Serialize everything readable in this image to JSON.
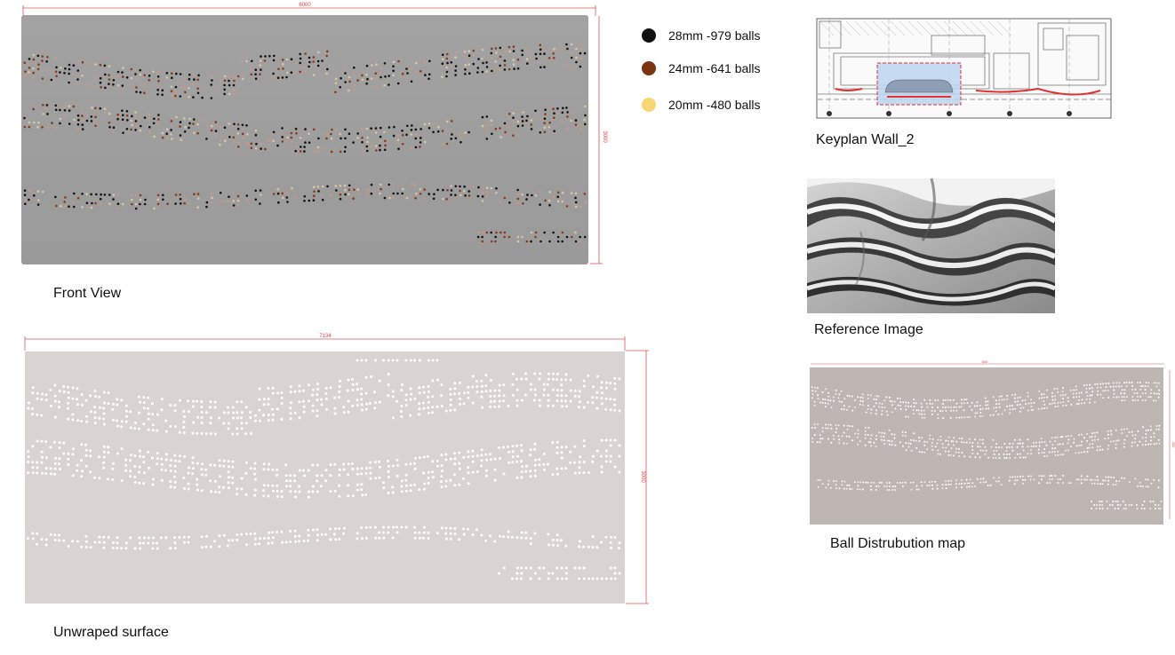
{
  "front_view": {
    "caption": "Front View",
    "width_dim": "6000",
    "height_dim": "3000"
  },
  "legend": [
    {
      "label": "28mm -979 balls",
      "color": "#111111"
    },
    {
      "label": "24mm -641 balls",
      "color": "#7a3410"
    },
    {
      "label": "20mm -480 balls",
      "color": "#f7d774"
    }
  ],
  "keyplan": {
    "caption": "Keyplan Wall_2"
  },
  "reference": {
    "caption": "Reference Image"
  },
  "unwrapped": {
    "caption": "Unwraped surface",
    "width_dim": "7134",
    "height_dim": "3000"
  },
  "distribution": {
    "caption": "Ball Distrubution map",
    "width_dim": "600",
    "height_dim": "300"
  },
  "colors": {
    "front_panel": "#a7a7a7",
    "unwrapped_panel": "#d9d4d2",
    "dist_panel": "#bdb6b3",
    "dimension_line": "#e05555"
  }
}
